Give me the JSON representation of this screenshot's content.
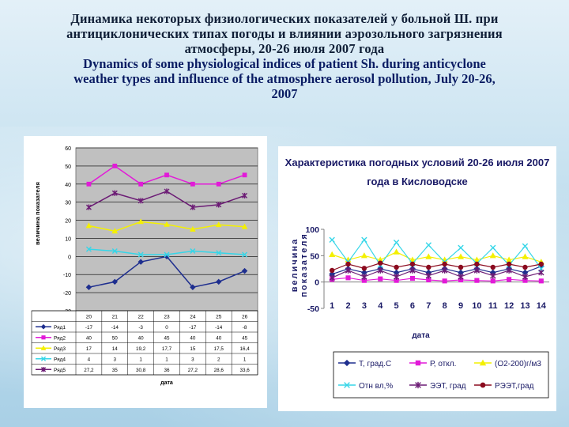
{
  "title": {
    "ru_lines": [
      "Динамика некоторых физиологических показателей у больной Ш. при",
      "антициклонических типах погоды и влиянии аэрозольного загрязнения",
      "атмосферы, 20-26 июля 2007 года"
    ],
    "en_lines": [
      "Dynamics of some physiological indices of patient Sh. during anticyclone",
      "weather types and influence of the atmosphere aerosol pollution, July 20-26,",
      "2007"
    ]
  },
  "colors": {
    "series1": "#1f2f8f",
    "series2": "#e21ad8",
    "series3": "#f4f000",
    "series4": "#36d6e8",
    "series5": "#6c1c75",
    "series6": "#8b0a1e",
    "plot_bg": "#c0c0c0"
  },
  "chart_data": [
    {
      "type": "line",
      "title": "",
      "ylabel": "величина показателя",
      "xlabel": "дата",
      "ylim": [
        -30,
        60
      ],
      "yticks": [
        "60",
        "50",
        "40",
        "30",
        "20",
        "10",
        "0",
        "-10",
        "-20",
        "-30"
      ],
      "categories": [
        "20",
        "21",
        "22",
        "23",
        "24",
        "25",
        "26"
      ],
      "series": [
        {
          "name": "Ряд1",
          "values": [
            -17,
            -14,
            -3,
            0,
            -17,
            -14,
            -8
          ],
          "labels": [
            "-17",
            "-14",
            "-3",
            "0",
            "-17",
            "-14",
            "-8"
          ],
          "color": "#1f2f8f",
          "marker": "diamond"
        },
        {
          "name": "Ряд2",
          "values": [
            40,
            50,
            40,
            45,
            40,
            40,
            45
          ],
          "labels": [
            "40",
            "50",
            "40",
            "45",
            "40",
            "40",
            "45"
          ],
          "color": "#e21ad8",
          "marker": "square"
        },
        {
          "name": "Ряд3",
          "values": [
            17,
            14,
            19.2,
            17.7,
            15,
            17.5,
            16.4
          ],
          "labels": [
            "17",
            "14",
            "19,2",
            "17,7",
            "15",
            "17,5",
            "16,4"
          ],
          "color": "#f4f000",
          "marker": "triangle"
        },
        {
          "name": "Ряд4",
          "values": [
            4,
            3,
            1,
            1,
            3,
            2,
            1
          ],
          "labels": [
            "4",
            "3",
            "1",
            "1",
            "3",
            "2",
            "1"
          ],
          "color": "#36d6e8",
          "marker": "x"
        },
        {
          "name": "Ряд5",
          "values": [
            27.2,
            35,
            30.8,
            36,
            27.2,
            28.6,
            33.6
          ],
          "labels": [
            "27,2",
            "35",
            "30,8",
            "36",
            "27,2",
            "28,6",
            "33,6"
          ],
          "color": "#6c1c75",
          "marker": "star"
        }
      ]
    },
    {
      "type": "line",
      "title_lines": [
        "Характеристика погодных условий 20-26 июля 2007",
        "года в Кисловодске"
      ],
      "ylabel_lines": [
        "величина",
        "показателя"
      ],
      "xlabel": "дата",
      "ylim": [
        -50,
        100
      ],
      "yticks": [
        "100",
        "50",
        "0",
        "-50"
      ],
      "categories": [
        "1",
        "2",
        "3",
        "4",
        "5",
        "6",
        "7",
        "8",
        "9",
        "10",
        "11",
        "12",
        "13",
        "14"
      ],
      "series": [
        {
          "name": "Т, град.С",
          "values": [
            15,
            25,
            18,
            25,
            18,
            25,
            18,
            25,
            18,
            25,
            18,
            25,
            18,
            30
          ],
          "color": "#1f2f8f",
          "marker": "diamond"
        },
        {
          "name": "Р, откл.",
          "values": [
            5,
            8,
            3,
            6,
            3,
            7,
            4,
            2,
            4,
            3,
            2,
            5,
            3,
            2
          ],
          "color": "#e21ad8",
          "marker": "square"
        },
        {
          "name": "(О2-200)г/м3",
          "values": [
            52,
            42,
            50,
            42,
            57,
            42,
            48,
            42,
            48,
            42,
            50,
            42,
            48,
            38
          ],
          "color": "#f4f000",
          "marker": "triangle"
        },
        {
          "name": "Отн вл,%",
          "values": [
            80,
            38,
            80,
            32,
            75,
            35,
            70,
            38,
            65,
            35,
            65,
            32,
            68,
            25
          ],
          "color": "#36d6e8",
          "marker": "x"
        },
        {
          "name": "ЭЭТ, град",
          "values": [
            8,
            22,
            10,
            22,
            10,
            22,
            12,
            22,
            10,
            22,
            12,
            22,
            10,
            18
          ],
          "color": "#6c1c75",
          "marker": "star"
        },
        {
          "name": "РЭЭТ,град",
          "values": [
            22,
            34,
            26,
            36,
            28,
            34,
            28,
            34,
            28,
            34,
            28,
            34,
            28,
            34
          ],
          "color": "#8b0a1e",
          "marker": "circle"
        }
      ]
    }
  ]
}
